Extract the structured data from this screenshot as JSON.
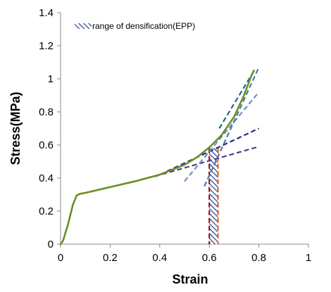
{
  "chart_data": {
    "type": "line",
    "title": "",
    "xlabel": "Strain",
    "ylabel": "Stress(MPa)",
    "xlim": [
      0,
      1
    ],
    "ylim": [
      0,
      1.4
    ],
    "x_ticks": [
      0,
      0.2,
      0.4,
      0.6,
      0.8,
      1
    ],
    "x_tick_labels": [
      "0",
      "0.2",
      "0.4",
      "0.6",
      "0.8",
      "1"
    ],
    "y_ticks": [
      0,
      0.2,
      0.4,
      0.6,
      0.8,
      1,
      1.2,
      1.4
    ],
    "y_tick_labels": [
      "0",
      "0.2",
      "0.4",
      "0.6",
      "0.8",
      "1",
      "1.2",
      "1.4"
    ],
    "grid": false,
    "legend": {
      "placement": "top-left",
      "entries": [
        "range of densification(EPP)"
      ]
    },
    "colors": {
      "curve": "#6b8e23",
      "tangent_a": "#5a3a8a",
      "tangent_b": "#2d2d80",
      "tangent_c": "#6a8fc4",
      "tangent_d": "#4a7aaa",
      "tangent_e": "#1f6a8a",
      "band_hatch": "#1f3f8f",
      "band_left": "#8b1a1a",
      "band_right": "#e06020"
    },
    "series": [
      {
        "role": "stress-strain-curve",
        "x": [
          0,
          0.01,
          0.03,
          0.05,
          0.065,
          0.08,
          0.1,
          0.2,
          0.3,
          0.4,
          0.5,
          0.55,
          0.6,
          0.65,
          0.7,
          0.74,
          0.77,
          0.78
        ],
        "y": [
          0,
          0.02,
          0.12,
          0.24,
          0.295,
          0.305,
          0.31,
          0.345,
          0.38,
          0.42,
          0.48,
          0.525,
          0.585,
          0.66,
          0.77,
          0.9,
          1.02,
          1.05
        ]
      },
      {
        "role": "tangent-line",
        "style": "dashed",
        "x": [
          0.38,
          0.8
        ],
        "y": [
          0.41,
          0.59
        ]
      },
      {
        "role": "tangent-line",
        "style": "dashed",
        "x": [
          0.4,
          0.8
        ],
        "y": [
          0.42,
          0.7
        ]
      },
      {
        "role": "tangent-line",
        "style": "dashed",
        "x": [
          0.5,
          0.8
        ],
        "y": [
          0.38,
          0.92
        ]
      },
      {
        "role": "tangent-line",
        "style": "dashed",
        "x": [
          0.58,
          0.8
        ],
        "y": [
          0.35,
          1.07
        ]
      },
      {
        "role": "tangent-line",
        "style": "dashed",
        "x": [
          0.64,
          0.785
        ],
        "y": [
          0.7,
          1.06
        ]
      }
    ],
    "densification_range": {
      "x_start": 0.6,
      "x_end": 0.635,
      "y_top": 0.58
    }
  }
}
